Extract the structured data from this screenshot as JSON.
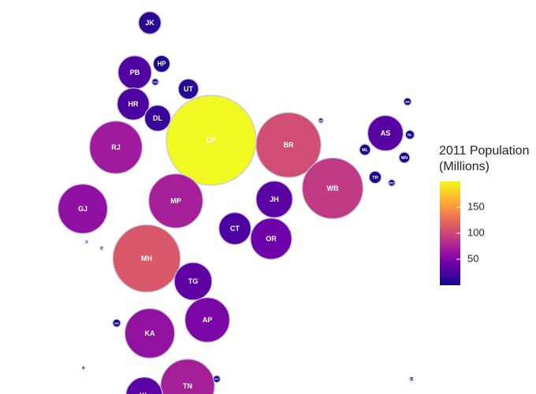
{
  "chart_data": {
    "type": "bubble",
    "categories": [
      "JK",
      "HP",
      "PB",
      "CH",
      "UT",
      "HR",
      "DL",
      "UP",
      "BR",
      "SK",
      "AR",
      "AS",
      "NL",
      "ML",
      "MN",
      "TR",
      "MZ",
      "RJ",
      "GJ",
      "MP",
      "JH",
      "WB",
      "CT",
      "OR",
      "MH",
      "DD",
      "DN",
      "TG",
      "AP",
      "GA",
      "KA",
      "TN",
      "KL",
      "PY",
      "LD",
      "AN"
    ],
    "values": [
      12.5,
      6.9,
      27.7,
      1.1,
      10.1,
      25.4,
      16.8,
      199.8,
      104.1,
      0.6,
      1.4,
      31.2,
      2.0,
      3.0,
      2.9,
      3.7,
      1.1,
      68.5,
      60.4,
      72.6,
      33.0,
      91.3,
      25.5,
      42.0,
      112.4,
      0.2,
      0.3,
      35.0,
      49.4,
      1.5,
      61.1,
      72.1,
      33.4,
      1.2,
      0.06,
      0.4
    ],
    "colorbar": {
      "title": "2011 Population (Millions)",
      "ticks": [
        50,
        100,
        150
      ]
    },
    "colorscale": [
      "#0d0887",
      "#46039f",
      "#7201a8",
      "#9c179e",
      "#bd3786",
      "#d8576b",
      "#ed7953",
      "#fb9f3a",
      "#fdca26",
      "#f0f921"
    ]
  }
}
